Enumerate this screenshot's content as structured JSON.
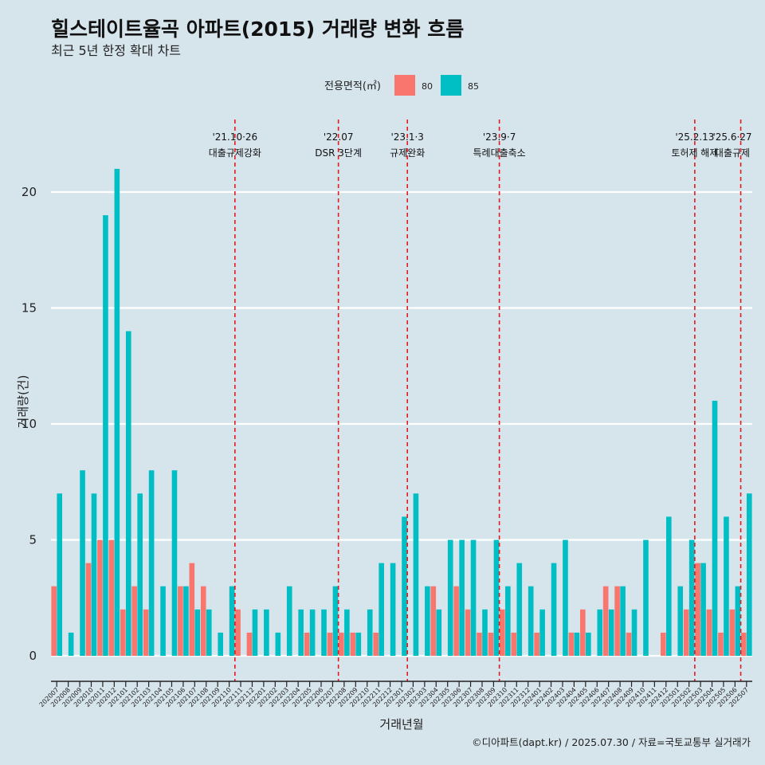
{
  "chart_data": {
    "type": "bar",
    "title": "힐스테이트율곡 아파트(2015) 거래량 변화 흐름",
    "subtitle": "최근 5년 한정 확대 차트",
    "xlabel": "거래년월",
    "ylabel": "거래량(건)",
    "caption": "©디아파트(dapt.kr) / 2025.07.30 / 자료=국토교통부 실거래가",
    "legend": {
      "title": "전용면적(㎡)",
      "position": "top"
    },
    "ylim": [
      0,
      21
    ],
    "yticks": [
      0,
      5,
      10,
      15,
      20
    ],
    "colors": {
      "80": "#f8766d",
      "85": "#00bfc4",
      "event_line": "#e41a1c",
      "grid": "#ffffff",
      "background": "#d6e4ec"
    },
    "categories": [
      "202007",
      "202008",
      "202009",
      "202010",
      "202011",
      "202012",
      "202101",
      "202102",
      "202103",
      "202104",
      "202105",
      "202106",
      "202107",
      "202108",
      "202109",
      "202110",
      "202111",
      "202112",
      "202201",
      "202202",
      "202203",
      "202204",
      "202205",
      "202206",
      "202207",
      "202208",
      "202209",
      "202210",
      "202211",
      "202212",
      "202301",
      "202302",
      "202303",
      "202304",
      "202305",
      "202306",
      "202307",
      "202308",
      "202309",
      "202310",
      "202311",
      "202312",
      "202401",
      "202402",
      "202403",
      "202404",
      "202405",
      "202406",
      "202407",
      "202408",
      "202409",
      "202410",
      "202411",
      "202412",
      "202501",
      "202502",
      "202503",
      "202504",
      "202505",
      "202506",
      "202507"
    ],
    "series": [
      {
        "name": "80",
        "values": [
          3,
          0,
          0,
          4,
          5,
          5,
          2,
          3,
          2,
          0,
          0,
          3,
          4,
          3,
          0,
          0,
          2,
          1,
          0,
          0,
          0,
          0,
          1,
          0,
          1,
          1,
          1,
          0,
          1,
          0,
          0,
          0,
          0,
          3,
          0,
          3,
          2,
          1,
          1,
          2,
          1,
          0,
          1,
          0,
          0,
          1,
          2,
          0,
          3,
          3,
          1,
          0,
          0,
          1,
          0,
          2,
          4,
          2,
          1,
          2,
          1
        ]
      },
      {
        "name": "85",
        "values": [
          7,
          1,
          8,
          7,
          19,
          21,
          14,
          7,
          8,
          3,
          8,
          3,
          2,
          2,
          1,
          3,
          0,
          2,
          2,
          1,
          3,
          2,
          2,
          2,
          3,
          2,
          1,
          2,
          4,
          4,
          6,
          7,
          3,
          2,
          5,
          5,
          5,
          2,
          5,
          3,
          4,
          3,
          2,
          4,
          5,
          1,
          1,
          2,
          2,
          3,
          2,
          5,
          0,
          6,
          3,
          5,
          4,
          11,
          6,
          3,
          7
        ]
      }
    ],
    "events": [
      {
        "after": "202110",
        "date": "'21.10·26",
        "label": "대출규제강화"
      },
      {
        "after": "202207",
        "date": "'22.07",
        "label": "DSR 3단계"
      },
      {
        "after": "202301",
        "date": "'23.1·3",
        "label": "규제완화"
      },
      {
        "after": "202309",
        "date": "'23.9·7",
        "label": "특례대출축소"
      },
      {
        "after": "202502",
        "date": "'25.2.13",
        "label": "토허제 해제"
      },
      {
        "after": "202506",
        "date": "'25.6·27",
        "label": "대출규제"
      }
    ]
  }
}
